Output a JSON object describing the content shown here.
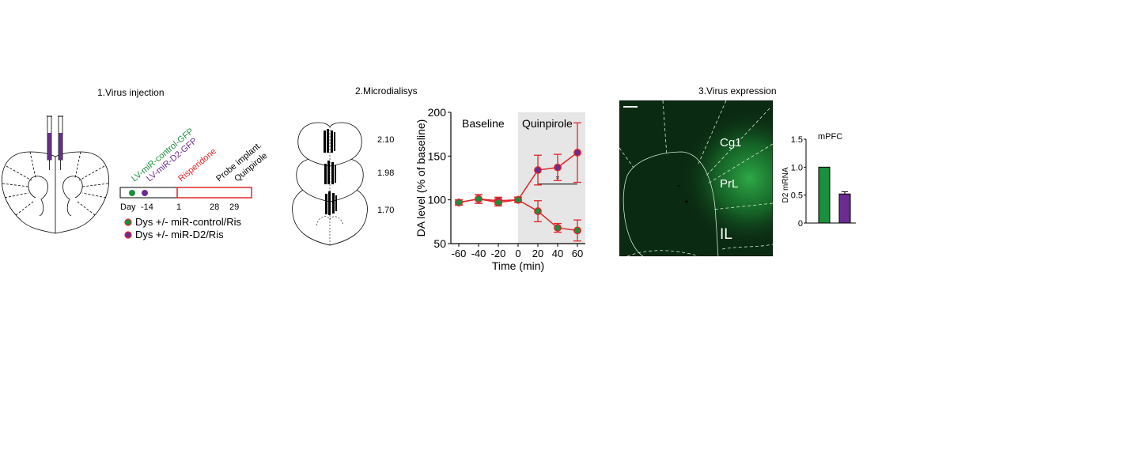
{
  "panel1": {
    "title": "1.Virus injection",
    "rotated_labels": [
      {
        "text": "LV-miR-control-GFP",
        "color": "#1a8f3c"
      },
      {
        "text": "LV-miR-D2-GFP",
        "color": "#6a2c91"
      },
      {
        "text": "Risperidone",
        "color": "#e0262a"
      },
      {
        "text": "Probe implant.",
        "color": "#000000"
      },
      {
        "text": "Quinpirole",
        "color": "#000000"
      }
    ],
    "day_label": "Day",
    "day_ticks": [
      "-14",
      "1",
      "28",
      "29"
    ],
    "legend": [
      {
        "text": "Dys +/- miR-control/Ris",
        "fill": "#1a8f3c",
        "ring": "#e0262a"
      },
      {
        "text": "Dys +/- miR-D2/Ris",
        "fill": "#6a2c91",
        "ring": "#e0262a"
      }
    ],
    "colors": {
      "green": "#1a8f3c",
      "purple": "#6a2c91",
      "red": "#e0262a"
    }
  },
  "panel2": {
    "title": "2.Microdialisys",
    "section_levels": [
      "2.10",
      "1.98",
      "1.70"
    ]
  },
  "chart_data": [
    {
      "type": "line",
      "x": [
        -60,
        -40,
        -20,
        0,
        20,
        40,
        60
      ],
      "xticks": [
        "-60",
        "-40",
        "-20",
        "0",
        "20",
        "40",
        "60"
      ],
      "xlabel": "Time (min)",
      "ylabel": "DA level (% of baseline)",
      "yticks": [
        "50",
        "100",
        "150",
        "200"
      ],
      "ylim": [
        50,
        200
      ],
      "regions": [
        {
          "label": "Baseline",
          "x_range": [
            -60,
            0
          ],
          "shaded": false
        },
        {
          "label": "Quinpirole",
          "x_range": [
            0,
            60
          ],
          "shaded": true,
          "color": "#e6e6e6"
        }
      ],
      "series": [
        {
          "values": [
            97,
            101,
            99,
            100,
            134,
            137,
            154
          ],
          "err": [
            3,
            5,
            4,
            3,
            17,
            15,
            34
          ],
          "fill": "#6a2c91",
          "edge": "#e0262a"
        },
        {
          "values": [
            97,
            101,
            97,
            100,
            87,
            68,
            65
          ],
          "err": [
            3,
            5,
            4,
            3,
            12,
            5,
            12
          ],
          "fill": "#1a8f3c",
          "edge": "#e0262a"
        }
      ],
      "annotation": "*",
      "significance_bar": [
        20,
        60
      ]
    },
    {
      "type": "bar",
      "title": "mPFC",
      "ylabel": "D2 mRNA",
      "yticks": [
        "0",
        "0.5",
        "1.0",
        "1.5"
      ],
      "ylim": [
        0,
        1.5
      ],
      "values": [
        1.0,
        0.52
      ],
      "err": [
        0,
        0.04
      ],
      "colors": [
        "#1a8f3c",
        "#6a2c91"
      ]
    }
  ],
  "panel3": {
    "title": "3.Virus expression",
    "region_labels": [
      "Cg1",
      "PrL",
      "IL"
    ]
  }
}
